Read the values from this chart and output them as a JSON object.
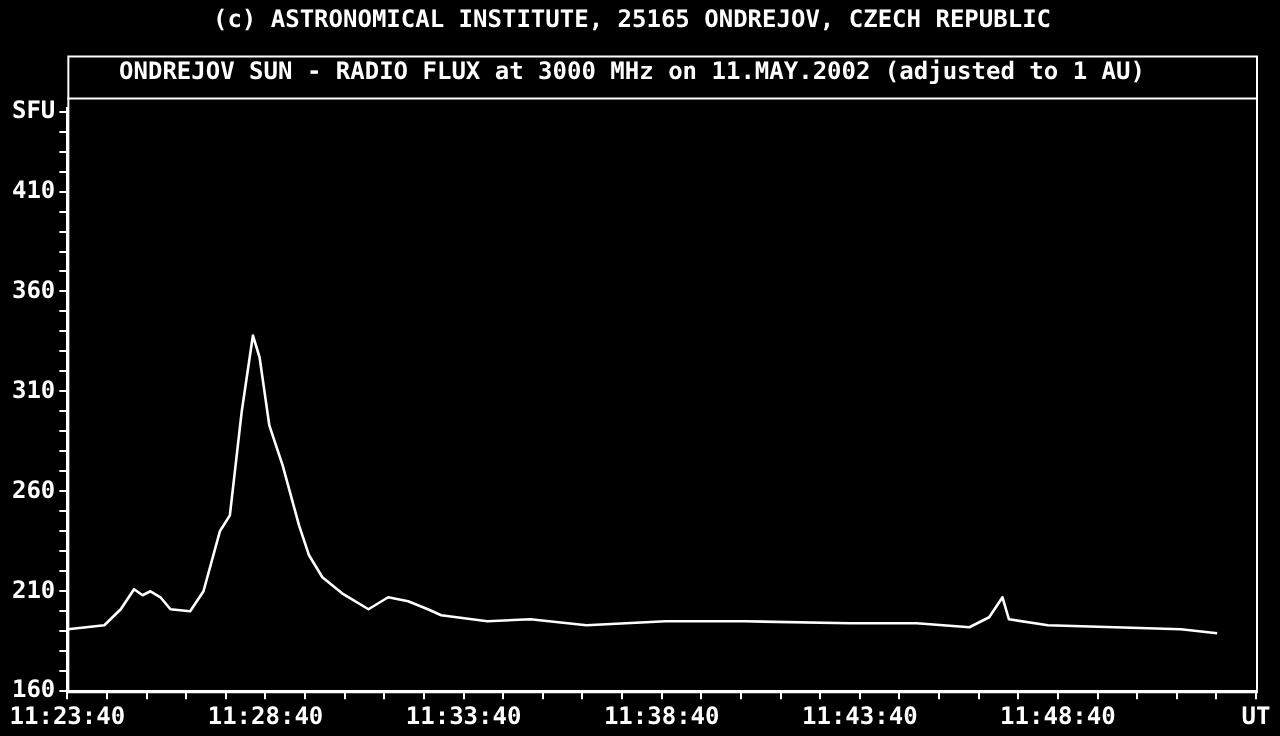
{
  "chart_data": {
    "type": "line",
    "title": "(c) ASTRONOMICAL INSTITUTE, 25165 ONDREJOV, CZECH REPUBLIC",
    "subtitle": "ONDREJOV SUN - RADIO FLUX at 3000 MHz on 11.MAY.2002 (adjusted to 1 AU)",
    "ylabel": "SFU",
    "x": [
      11.3947,
      11.41,
      11.4169,
      11.4225,
      11.4261,
      11.4294,
      11.4336,
      11.4378,
      11.4461,
      11.4517,
      11.4586,
      11.4628,
      11.4678,
      11.4725,
      11.4753,
      11.4794,
      11.485,
      11.4919,
      11.4961,
      11.5017,
      11.51,
      11.5211,
      11.5294,
      11.5378,
      11.5461,
      11.5517,
      11.5711,
      11.5892,
      11.6128,
      11.6461,
      11.6794,
      11.7236,
      11.7517,
      11.7739,
      11.7822,
      11.7878,
      11.7905,
      11.8069,
      11.835,
      11.8628,
      11.8781
    ],
    "series": [
      {
        "color": "#ffffff",
        "values": [
          191,
          193,
          201,
          211,
          208,
          210,
          207,
          201,
          200,
          210,
          240,
          248,
          300,
          338,
          327,
          293,
          273,
          243,
          228,
          217,
          209,
          201,
          207,
          205,
          201,
          198,
          195,
          196,
          193,
          195,
          195,
          194,
          194,
          192,
          197,
          207,
          196,
          193,
          192,
          191,
          189
        ]
      }
    ],
    "xlim": [
      11.39444,
      11.89444
    ],
    "xticks": [
      {
        "value": 11.39444,
        "label": "11:23:40"
      },
      {
        "value": 11.41111,
        "label": null
      },
      {
        "value": 11.42778,
        "label": null
      },
      {
        "value": 11.44444,
        "label": null
      },
      {
        "value": 11.46111,
        "label": null
      },
      {
        "value": 11.47778,
        "label": "11:28:40"
      },
      {
        "value": 11.49444,
        "label": null
      },
      {
        "value": 11.51111,
        "label": null
      },
      {
        "value": 11.52778,
        "label": null
      },
      {
        "value": 11.54444,
        "label": null
      },
      {
        "value": 11.56111,
        "label": "11:33:40"
      },
      {
        "value": 11.57778,
        "label": null
      },
      {
        "value": 11.59444,
        "label": null
      },
      {
        "value": 11.61111,
        "label": null
      },
      {
        "value": 11.62778,
        "label": null
      },
      {
        "value": 11.64444,
        "label": "11:38:40"
      },
      {
        "value": 11.66111,
        "label": null
      },
      {
        "value": 11.67778,
        "label": null
      },
      {
        "value": 11.69444,
        "label": null
      },
      {
        "value": 11.71111,
        "label": null
      },
      {
        "value": 11.72778,
        "label": "11:43:40"
      },
      {
        "value": 11.74444,
        "label": null
      },
      {
        "value": 11.76111,
        "label": null
      },
      {
        "value": 11.77778,
        "label": null
      },
      {
        "value": 11.79444,
        "label": null
      },
      {
        "value": 11.81111,
        "label": "11:48:40"
      },
      {
        "value": 11.82778,
        "label": null
      },
      {
        "value": 11.84444,
        "label": null
      },
      {
        "value": 11.86111,
        "label": null
      },
      {
        "value": 11.87778,
        "label": null
      },
      {
        "value": 11.89444,
        "label": "UT"
      }
    ],
    "ylim": [
      160,
      452
    ],
    "yticks": [
      160,
      {
        "value": 170,
        "label": null
      },
      {
        "value": 180,
        "label": null
      },
      {
        "value": 190,
        "label": null
      },
      {
        "value": 200,
        "label": null
      },
      210,
      {
        "value": 220,
        "label": null
      },
      {
        "value": 230,
        "label": null
      },
      {
        "value": 240,
        "label": null
      },
      {
        "value": 250,
        "label": null
      },
      260,
      {
        "value": 270,
        "label": null
      },
      {
        "value": 280,
        "label": null
      },
      {
        "value": 290,
        "label": null
      },
      {
        "value": 300,
        "label": null
      },
      310,
      {
        "value": 320,
        "label": null
      },
      {
        "value": 330,
        "label": null
      },
      {
        "value": 340,
        "label": null
      },
      {
        "value": 350,
        "label": null
      },
      360,
      {
        "value": 370,
        "label": null
      },
      {
        "value": 380,
        "label": null
      },
      {
        "value": 390,
        "label": null
      },
      {
        "value": 400,
        "label": null
      },
      410,
      {
        "value": 420,
        "label": null
      },
      {
        "value": 430,
        "label": null
      },
      {
        "value": 440,
        "label": null
      },
      {
        "value": 450,
        "label": null
      }
    ],
    "grid": false,
    "legend": false,
    "marker": "none",
    "line_style": "solid"
  }
}
